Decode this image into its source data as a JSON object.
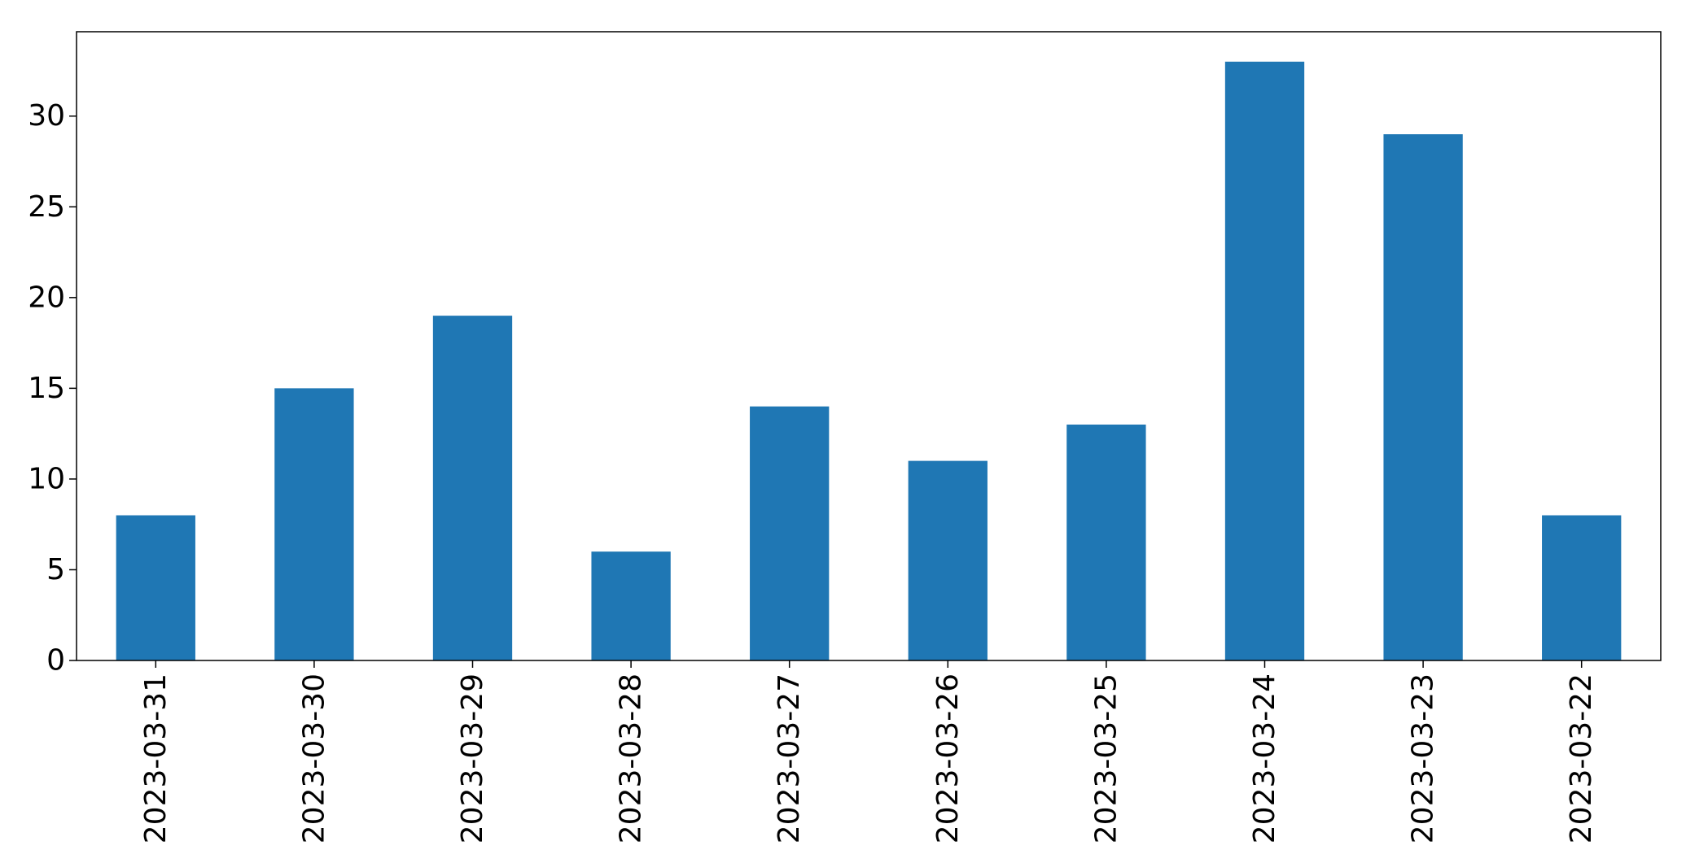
{
  "chart_data": {
    "type": "bar",
    "categories": [
      "2023-03-31",
      "2023-03-30",
      "2023-03-29",
      "2023-03-28",
      "2023-03-27",
      "2023-03-26",
      "2023-03-25",
      "2023-03-24",
      "2023-03-23",
      "2023-03-22"
    ],
    "values": [
      8,
      15,
      19,
      6,
      14,
      11,
      13,
      33,
      29,
      8
    ],
    "title": "",
    "xlabel": "",
    "ylabel": "",
    "ylim": [
      0,
      34.65
    ],
    "yticks": [
      0,
      5,
      10,
      15,
      20,
      25,
      30
    ],
    "bar_color": "#1f77b4",
    "grid": false,
    "legend": false
  }
}
